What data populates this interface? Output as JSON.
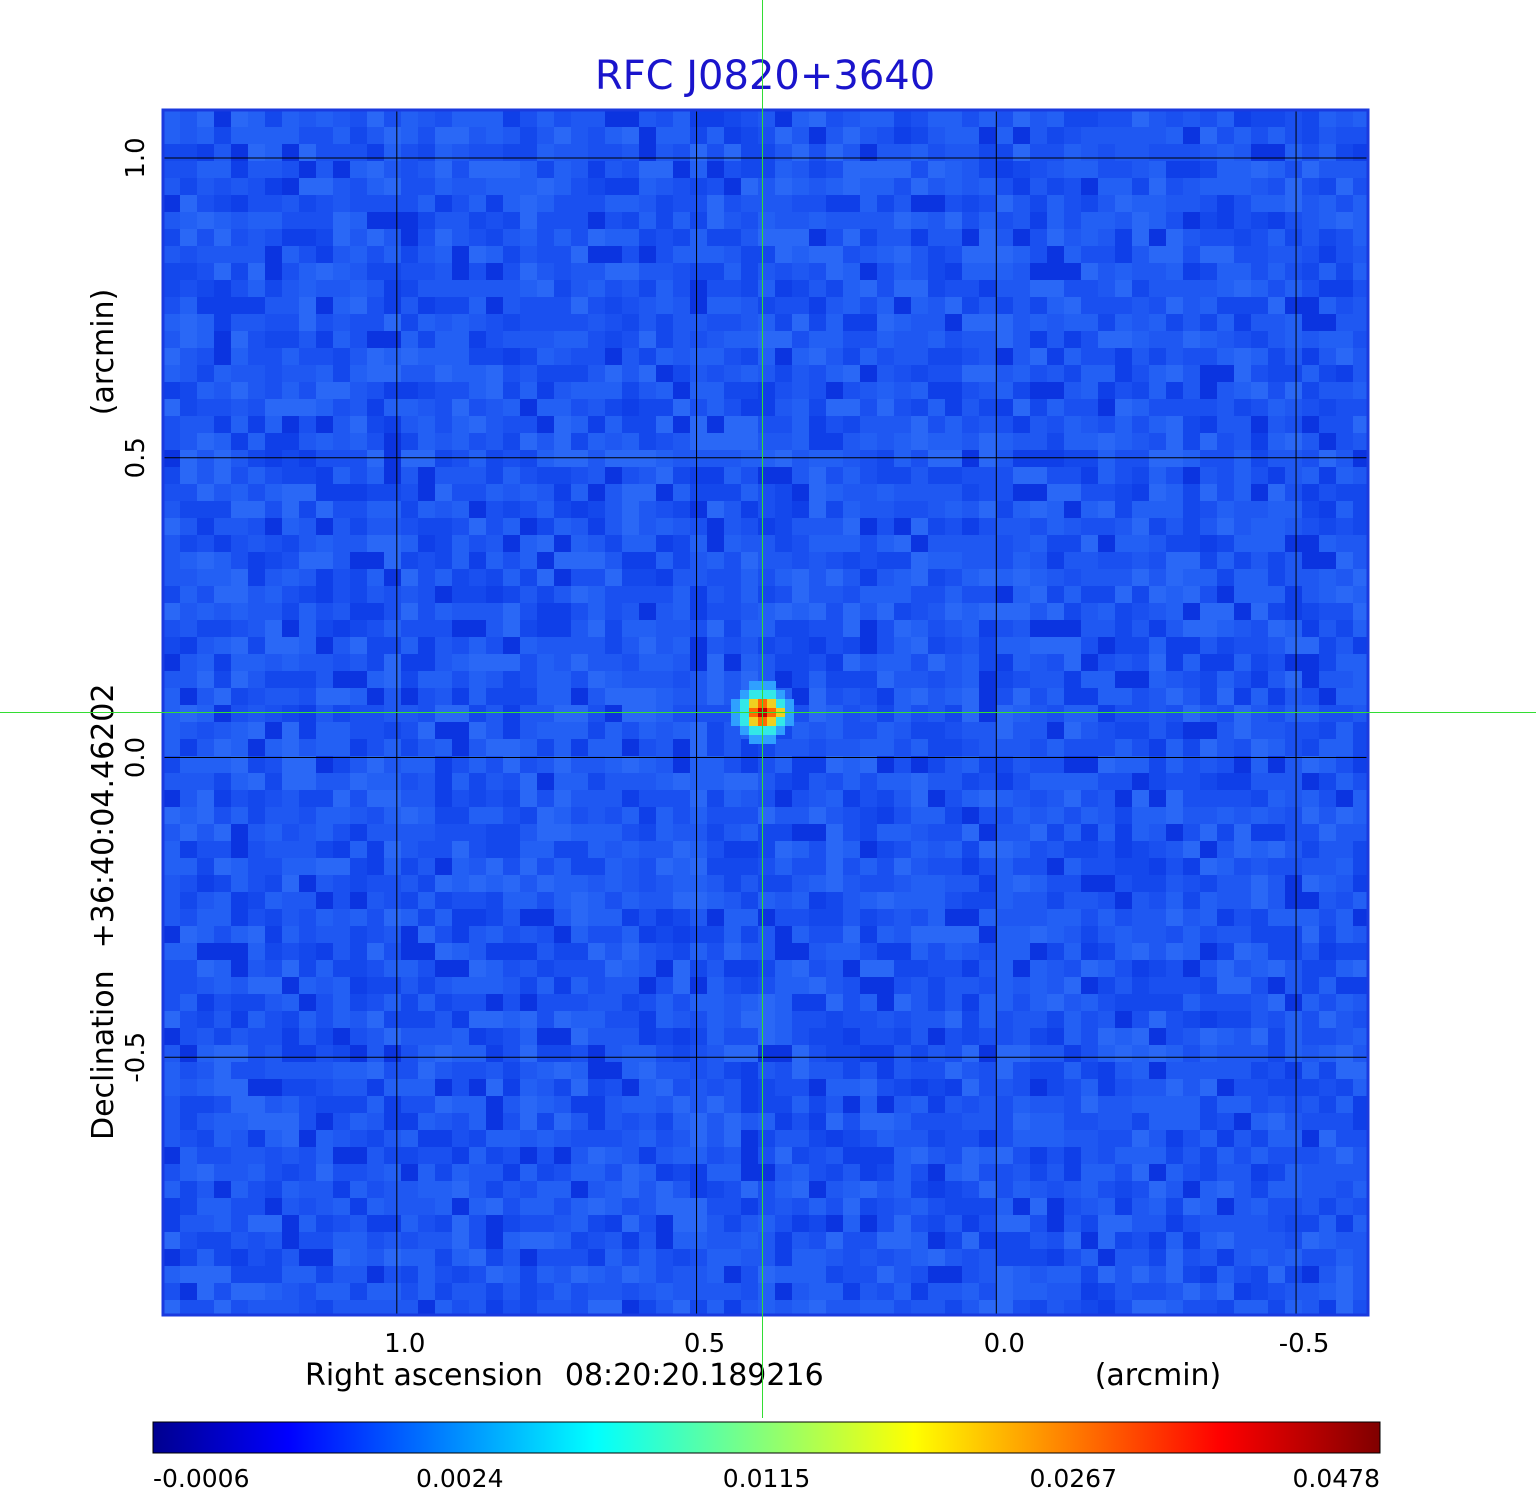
{
  "chart_data": {
    "type": "heatmap",
    "title": "RFC J0820+3640",
    "xlabel_prefix": "Right ascension",
    "xlabel_center": "08:20:20.189216",
    "xlabel_unit": "(arcmin)",
    "ylabel_prefix": "Declination",
    "ylabel_center": "+36:40:04.46202",
    "ylabel_unit": "(arcmin)",
    "x_axis": {
      "reversed": true,
      "range": [
        1.39,
        -0.62
      ],
      "ticks": [
        1.0,
        0.5,
        0.0,
        -0.5
      ],
      "tick_labels": [
        "1.0",
        "0.5",
        "0.0",
        "-0.5"
      ]
    },
    "y_axis": {
      "range": [
        -0.93,
        1.08
      ],
      "ticks": [
        1.0,
        0.5,
        0.0,
        -0.5
      ],
      "tick_labels": [
        "1.0",
        "0.5",
        "0.0",
        "-0.5"
      ]
    },
    "grid": true,
    "source": {
      "x": 0.39,
      "y": 0.075,
      "peak": 0.0478
    },
    "crosshair": {
      "x": 0.39,
      "y": 0.075,
      "color": "#33dd33"
    },
    "colorbar": {
      "orientation": "horizontal",
      "position": "bottom",
      "colormap": "jet",
      "tick_labels": [
        "-0.0006",
        "0.0024",
        "0.0115",
        "0.0267",
        "0.0478"
      ]
    },
    "background_level": "-0.0006 to 0.0024"
  }
}
